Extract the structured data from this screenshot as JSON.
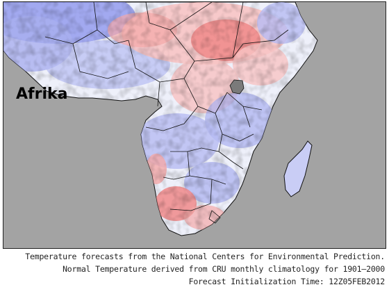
{
  "map": {
    "region_label": "Afrika",
    "colors": {
      "ocean": "#a3a3a3",
      "warm": "#f08a8a",
      "warm_light": "#f7c4c4",
      "cool": "#8f97ee",
      "cool_light": "#c9cdf5",
      "neutral": "#f2f2f6",
      "lake": "#7a7a7a",
      "border": "#111111"
    },
    "layers": [
      "continent-outline",
      "country-borders",
      "temperature-anomaly-shading"
    ]
  },
  "caption": {
    "line1": "Temperature forecasts from the National Centers for Environmental Prediction.",
    "line2": "Normal Temperature derived from CRU monthly climatology for 1901—2000",
    "line3": "Forecast Initialization Time: 12Z05FEB2012"
  }
}
